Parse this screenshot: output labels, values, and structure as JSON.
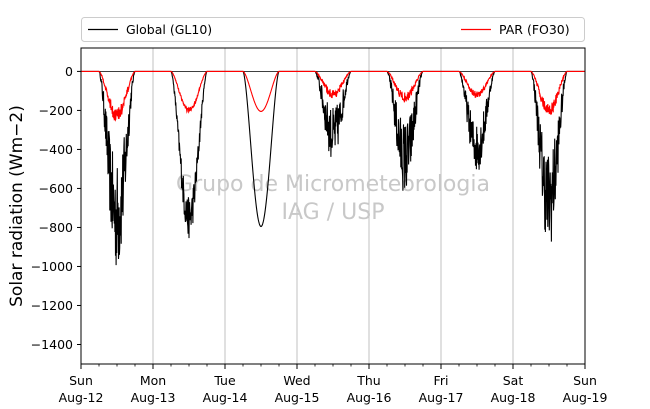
{
  "chart_data": {
    "type": "line",
    "title": "",
    "xlabel": "",
    "ylabel": "Solar radiation (Wm−2)",
    "ylim": [
      -1500,
      120
    ],
    "xlim": [
      "2018-08-12",
      "2018-08-19"
    ],
    "x_ticks": [
      {
        "day": "Sun",
        "date": "Aug-12"
      },
      {
        "day": "Mon",
        "date": "Aug-13"
      },
      {
        "day": "Tue",
        "date": "Aug-14"
      },
      {
        "day": "Wed",
        "date": "Aug-15"
      },
      {
        "day": "Thu",
        "date": "Aug-16"
      },
      {
        "day": "Fri",
        "date": "Aug-17"
      },
      {
        "day": "Sat",
        "date": "Aug-18"
      },
      {
        "day": "Sun",
        "date": "Aug-19"
      }
    ],
    "y_ticks": [
      "0",
      "−200",
      "−400",
      "−600",
      "−800",
      "−1000",
      "−1200",
      "−1400"
    ],
    "y_tick_values": [
      0,
      -200,
      -400,
      -600,
      -800,
      -1000,
      -1200,
      -1400
    ],
    "grid": "vertical lines at day boundaries",
    "legend_placement": "above plot",
    "watermark": {
      "line1": "Grupo de Micrometeorologia",
      "line2": "IAG / USP"
    },
    "series": [
      {
        "name": "Global (GL10)",
        "color": "#000000",
        "daily_minimum": [
          -1030,
          -860,
          -795,
          -460,
          -630,
          -520,
          -910
        ]
      },
      {
        "name": "PAR (FO30)",
        "color": "#ff0000",
        "daily_minimum": [
          -265,
          -215,
          -205,
          -140,
          -160,
          -140,
          -235
        ]
      }
    ]
  }
}
